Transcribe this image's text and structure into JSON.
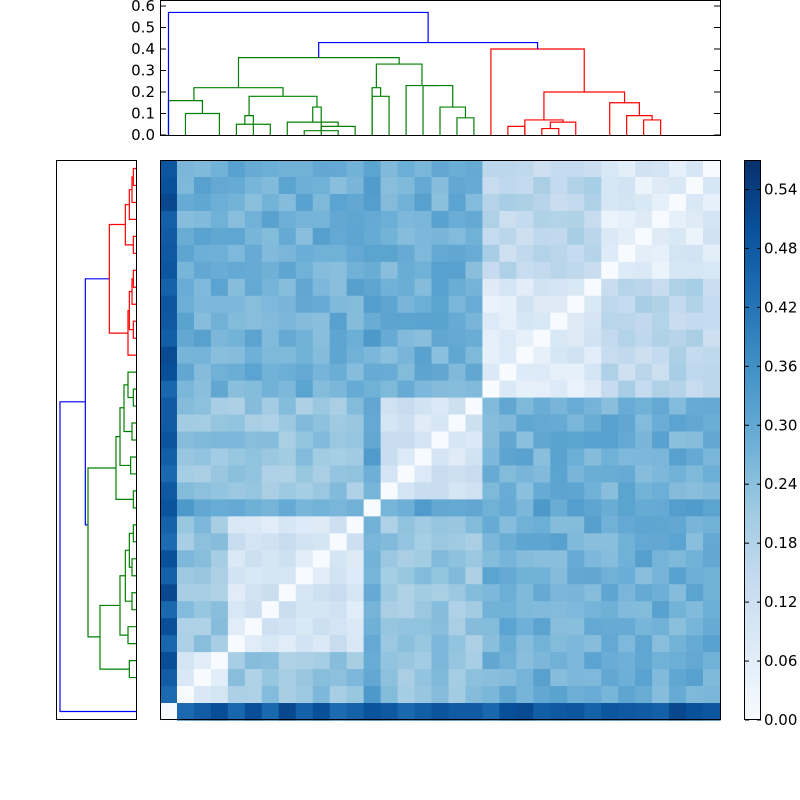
{
  "chart_data": [
    {
      "type": "dendrogram",
      "name": "top-dendrogram",
      "orientation": "top",
      "ylim": [
        0,
        0.6
      ],
      "ytick_labels": [
        "0.0",
        "0.1",
        "0.2",
        "0.3",
        "0.4",
        "0.5",
        "0.6"
      ],
      "ytick_values": [
        0.0,
        0.1,
        0.2,
        0.3,
        0.4,
        0.5,
        0.6
      ],
      "leaf_count": 33,
      "cluster_colors": [
        "#0000ff",
        "#008000",
        "#ff0000"
      ],
      "links": [
        {
          "cluster": "green",
          "left": 1.0,
          "right": 3.0,
          "height": 0.1,
          "left_h": 0.0,
          "right_h": 0.0
        },
        {
          "cluster": "green",
          "left": 0.0,
          "right": 2.0,
          "height": 0.16,
          "left_h": 0.0,
          "right_h": 0.1
        },
        {
          "cluster": "green",
          "left": 4.0,
          "right": 6.0,
          "height": 0.05,
          "left_h": 0.0,
          "right_h": 0.0
        },
        {
          "cluster": "green",
          "left": 4.5,
          "right": 5.0,
          "height": 0.09,
          "left_h": 0.05,
          "right_h": 0.0
        },
        {
          "cluster": "green",
          "left": 8.0,
          "right": 10.0,
          "height": 0.02,
          "left_h": 0.0,
          "right_h": 0.0
        },
        {
          "cluster": "green",
          "left": 9.0,
          "right": 11.0,
          "height": 0.04,
          "left_h": 0.02,
          "right_h": 0.0
        },
        {
          "cluster": "green",
          "left": 7.0,
          "right": 10.0,
          "height": 0.06,
          "left_h": 0.0,
          "right_h": 0.04
        },
        {
          "cluster": "green",
          "left": 8.5,
          "right": 9.0,
          "height": 0.13,
          "left_h": 0.06,
          "right_h": 0.0
        },
        {
          "cluster": "green",
          "left": 4.75,
          "right": 8.75,
          "height": 0.18,
          "left_h": 0.09,
          "right_h": 0.13
        },
        {
          "cluster": "green",
          "left": 1.5,
          "right": 6.75,
          "height": 0.22,
          "left_h": 0.16,
          "right_h": 0.18
        },
        {
          "cluster": "green",
          "left": 12.0,
          "right": 13.0,
          "height": 0.18,
          "left_h": 0.0,
          "right_h": 0.0
        },
        {
          "cluster": "green",
          "left": 12.5,
          "right": 12.0,
          "height": 0.22,
          "left_h": 0.18,
          "right_h": 0.0
        },
        {
          "cluster": "green",
          "left": 17.0,
          "right": 18.0,
          "height": 0.08,
          "left_h": 0.0,
          "right_h": 0.0
        },
        {
          "cluster": "green",
          "left": 16.0,
          "right": 17.5,
          "height": 0.13,
          "left_h": 0.0,
          "right_h": 0.08
        },
        {
          "cluster": "green",
          "left": 15.0,
          "right": 16.75,
          "height": 0.23,
          "left_h": 0.0,
          "right_h": 0.13
        },
        {
          "cluster": "green",
          "left": 14.0,
          "right": 15.875,
          "height": 0.23,
          "left_h": 0.0,
          "right_h": 0.23
        },
        {
          "cluster": "green",
          "left": 12.25,
          "right": 14.9375,
          "height": 0.33,
          "left_h": 0.22,
          "right_h": 0.23
        },
        {
          "cluster": "green",
          "left": 4.125,
          "right": 13.59375,
          "height": 0.36,
          "left_h": 0.22,
          "right_h": 0.33
        },
        {
          "cluster": "red",
          "left": 20.0,
          "right": 21.0,
          "height": 0.04,
          "left_h": 0.0,
          "right_h": 0.0
        },
        {
          "cluster": "red",
          "left": 22.0,
          "right": 23.0,
          "height": 0.03,
          "left_h": 0.0,
          "right_h": 0.0
        },
        {
          "cluster": "red",
          "left": 22.5,
          "right": 24.0,
          "height": 0.06,
          "left_h": 0.03,
          "right_h": 0.0
        },
        {
          "cluster": "red",
          "left": 21.0,
          "right": 23.25,
          "height": 0.07,
          "left_h": 0.0,
          "right_h": 0.06
        },
        {
          "cluster": "red",
          "left": 28.0,
          "right": 29.0,
          "height": 0.07,
          "left_h": 0.0,
          "right_h": 0.0
        },
        {
          "cluster": "red",
          "left": 27.0,
          "right": 28.5,
          "height": 0.09,
          "left_h": 0.0,
          "right_h": 0.07
        },
        {
          "cluster": "red",
          "left": 26.0,
          "right": 27.75,
          "height": 0.15,
          "left_h": 0.0,
          "right_h": 0.09
        },
        {
          "cluster": "red",
          "left": 22.125,
          "right": 26.875,
          "height": 0.2,
          "left_h": 0.07,
          "right_h": 0.15
        },
        {
          "cluster": "red",
          "left": 19.0,
          "right": 24.5,
          "height": 0.4,
          "left_h": 0.0,
          "right_h": 0.2
        },
        {
          "cluster": "blue",
          "left": 21.75,
          "right": 8.85,
          "height": 0.43,
          "left_h": 0.4,
          "right_h": 0.36
        },
        {
          "cluster": "blue",
          "left": 0.0,
          "right": 15.3,
          "height": 0.57,
          "left_h": 0.0,
          "right_h": 0.43
        }
      ]
    },
    {
      "type": "dendrogram",
      "name": "left-dendrogram",
      "orientation": "left",
      "leaf_count": 33,
      "cluster_colors": [
        "#0000ff",
        "#008000",
        "#ff0000"
      ],
      "links": [
        {
          "cluster": "red",
          "left": 0.0,
          "right": 1.0,
          "height": 0.02,
          "left_h": 0.0,
          "right_h": 0.0
        },
        {
          "cluster": "red",
          "left": 0.5,
          "right": 2.0,
          "height": 0.03,
          "left_h": 0.02,
          "right_h": 0.0
        },
        {
          "cluster": "red",
          "left": 1.25,
          "right": 3.0,
          "height": 0.05,
          "left_h": 0.03,
          "right_h": 0.0
        },
        {
          "cluster": "red",
          "left": 4.0,
          "right": 5.0,
          "height": 0.02,
          "left_h": 0.0,
          "right_h": 0.0
        },
        {
          "cluster": "red",
          "left": 2.125,
          "right": 4.5,
          "height": 0.08,
          "left_h": 0.05,
          "right_h": 0.02
        },
        {
          "cluster": "red",
          "left": 6.0,
          "right": 7.0,
          "height": 0.02,
          "left_h": 0.0,
          "right_h": 0.0
        },
        {
          "cluster": "red",
          "left": 6.5,
          "right": 8.0,
          "height": 0.03,
          "left_h": 0.02,
          "right_h": 0.0
        },
        {
          "cluster": "red",
          "left": 9.0,
          "right": 10.0,
          "height": 0.02,
          "left_h": 0.0,
          "right_h": 0.0
        },
        {
          "cluster": "red",
          "left": 7.25,
          "right": 9.5,
          "height": 0.05,
          "left_h": 0.03,
          "right_h": 0.02
        },
        {
          "cluster": "red",
          "left": 8.375,
          "right": 11.0,
          "height": 0.06,
          "left_h": 0.05,
          "right_h": 0.0
        },
        {
          "cluster": "red",
          "left": 3.3,
          "right": 9.7,
          "height": 0.2,
          "left_h": 0.08,
          "right_h": 0.06
        },
        {
          "cluster": "blue",
          "left": 6.5,
          "right": 21.0,
          "height": 0.38,
          "left_h": 0.2,
          "right_h": 0.36
        },
        {
          "cluster": "green",
          "left": 13.0,
          "right": 14.0,
          "height": 0.02,
          "left_h": 0.0,
          "right_h": 0.0
        },
        {
          "cluster": "green",
          "left": 12.0,
          "right": 13.5,
          "height": 0.06,
          "left_h": 0.0,
          "right_h": 0.02
        },
        {
          "cluster": "green",
          "left": 15.0,
          "right": 16.0,
          "height": 0.03,
          "left_h": 0.0,
          "right_h": 0.0
        },
        {
          "cluster": "green",
          "left": 12.75,
          "right": 15.5,
          "height": 0.09,
          "left_h": 0.06,
          "right_h": 0.03
        },
        {
          "cluster": "green",
          "left": 17.0,
          "right": 18.0,
          "height": 0.04,
          "left_h": 0.0,
          "right_h": 0.0
        },
        {
          "cluster": "green",
          "left": 14.1,
          "right": 17.5,
          "height": 0.12,
          "left_h": 0.09,
          "right_h": 0.04
        },
        {
          "cluster": "green",
          "left": 19.0,
          "right": 20.0,
          "height": 0.02,
          "left_h": 0.0,
          "right_h": 0.0
        },
        {
          "cluster": "green",
          "left": 15.8,
          "right": 19.5,
          "height": 0.15,
          "left_h": 0.12,
          "right_h": 0.02
        },
        {
          "cluster": "green",
          "left": 21.0,
          "right": 22.0,
          "height": 0.02,
          "left_h": 0.0,
          "right_h": 0.0
        },
        {
          "cluster": "green",
          "left": 23.0,
          "right": 24.0,
          "height": 0.03,
          "left_h": 0.0,
          "right_h": 0.0
        },
        {
          "cluster": "green",
          "left": 21.5,
          "right": 23.5,
          "height": 0.05,
          "left_h": 0.02,
          "right_h": 0.03
        },
        {
          "cluster": "green",
          "left": 25.0,
          "right": 26.0,
          "height": 0.03,
          "left_h": 0.0,
          "right_h": 0.0
        },
        {
          "cluster": "green",
          "left": 22.5,
          "right": 25.5,
          "height": 0.08,
          "left_h": 0.05,
          "right_h": 0.03
        },
        {
          "cluster": "green",
          "left": 27.0,
          "right": 28.0,
          "height": 0.06,
          "left_h": 0.0,
          "right_h": 0.0
        },
        {
          "cluster": "green",
          "left": 24.0,
          "right": 27.5,
          "height": 0.12,
          "left_h": 0.08,
          "right_h": 0.06
        },
        {
          "cluster": "green",
          "left": 29.0,
          "right": 30.0,
          "height": 0.05,
          "left_h": 0.0,
          "right_h": 0.0
        },
        {
          "cluster": "green",
          "left": 25.75,
          "right": 29.5,
          "height": 0.27,
          "left_h": 0.12,
          "right_h": 0.05
        },
        {
          "cluster": "green",
          "left": 17.65,
          "right": 27.6,
          "height": 0.36,
          "left_h": 0.15,
          "right_h": 0.27
        },
        {
          "cluster": "blue",
          "left": 13.75,
          "right": 32.0,
          "height": 0.57,
          "left_h": 0.38,
          "right_h": 0.0
        }
      ]
    },
    {
      "type": "heatmap",
      "name": "distance-matrix",
      "rows": 33,
      "cols": 33,
      "vmin": 0.0,
      "vmax": 0.57,
      "colormap": "Blues",
      "colorbar_tick_labels": [
        "0.00",
        "0.06",
        "0.12",
        "0.18",
        "0.24",
        "0.30",
        "0.36",
        "0.42",
        "0.48",
        "0.54"
      ],
      "colorbar_tick_values": [
        0.0,
        0.06,
        0.12,
        0.18,
        0.24,
        0.3,
        0.36,
        0.42,
        0.48,
        0.54
      ],
      "leaf_clusters": [
        "G",
        "G",
        "G",
        "G",
        "G",
        "G",
        "G",
        "G",
        "G",
        "G",
        "G",
        "G",
        "G",
        "G",
        "G",
        "G",
        "G",
        "G",
        "G",
        "R",
        "R",
        "R",
        "R",
        "R",
        "R",
        "R",
        "R",
        "R",
        "R",
        "R",
        "R",
        "R",
        "R"
      ],
      "values": "symmetric distances: ~0.05-0.14 within red leaves 20-32, ~0.02-0.13 within green sub-blocks, ~0.22-0.35 between clusters, ~0.45-0.57 for outlier leaf 0 and leaf 12, 0 on the anti-diagonal"
    }
  ]
}
